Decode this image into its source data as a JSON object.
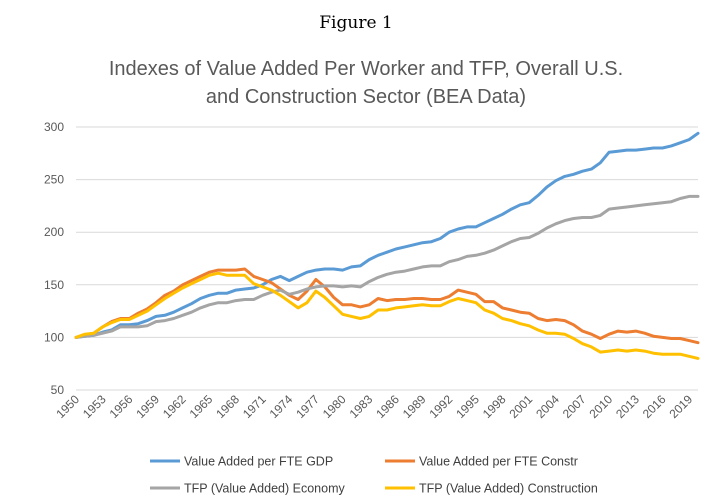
{
  "figure_label": "Figure 1",
  "chart_data": {
    "type": "line",
    "title": [
      "Indexes of Value Added Per Worker and TFP, Overall U.S.",
      "and Construction Sector (BEA Data)"
    ],
    "xlabel": "",
    "ylabel": "",
    "xlim": [
      1950,
      2020
    ],
    "ylim": [
      50,
      300
    ],
    "yticks": [
      50,
      100,
      150,
      200,
      250,
      300
    ],
    "xticks": [
      1950,
      1953,
      1956,
      1959,
      1962,
      1965,
      1968,
      1971,
      1974,
      1977,
      1980,
      1983,
      1986,
      1989,
      1992,
      1995,
      1998,
      2001,
      2004,
      2007,
      2010,
      2013,
      2016,
      2019
    ],
    "grid": true,
    "legend_position": "bottom",
    "x_start": 1950,
    "series": [
      {
        "name": "Value Added per FTE GDP",
        "color": "#5B9BD5",
        "values": [
          100,
          101,
          102,
          105,
          107,
          112,
          112,
          113,
          116,
          120,
          121,
          124,
          128,
          132,
          137,
          140,
          142,
          142,
          145,
          146,
          147,
          150,
          155,
          158,
          154,
          158,
          162,
          164,
          165,
          165,
          164,
          167,
          168,
          174,
          178,
          181,
          184,
          186,
          188,
          190,
          191,
          194,
          200,
          203,
          205,
          205,
          209,
          213,
          217,
          222,
          226,
          228,
          235,
          243,
          249,
          253,
          255,
          258,
          260,
          266,
          276,
          277,
          278,
          278,
          279,
          280,
          280,
          282,
          285,
          288,
          294
        ]
      },
      {
        "name": "Value Added per FTE Constr",
        "color": "#ED7D31",
        "values": [
          100,
          102,
          104,
          110,
          115,
          118,
          118,
          123,
          127,
          133,
          140,
          144,
          150,
          154,
          158,
          162,
          164,
          164,
          164,
          165,
          158,
          155,
          152,
          146,
          140,
          136,
          144,
          155,
          148,
          138,
          131,
          131,
          129,
          131,
          137,
          135,
          136,
          136,
          137,
          137,
          136,
          136,
          139,
          145,
          143,
          141,
          134,
          134,
          128,
          126,
          124,
          123,
          118,
          116,
          117,
          116,
          112,
          106,
          103,
          99,
          103,
          106,
          105,
          106,
          104,
          101,
          100,
          99,
          99,
          97,
          95
        ]
      },
      {
        "name": "TFP (Value Added) Economy",
        "color": "#A5A5A5",
        "values": [
          100,
          101,
          102,
          104,
          106,
          110,
          110,
          110,
          111,
          115,
          116,
          118,
          121,
          124,
          128,
          131,
          133,
          133,
          135,
          136,
          136,
          140,
          143,
          145,
          141,
          143,
          146,
          148,
          149,
          149,
          148,
          149,
          148,
          153,
          157,
          160,
          162,
          163,
          165,
          167,
          168,
          168,
          172,
          174,
          177,
          178,
          180,
          183,
          187,
          191,
          194,
          195,
          199,
          204,
          208,
          211,
          213,
          214,
          214,
          216,
          222,
          223,
          224,
          225,
          226,
          227,
          228,
          229,
          232,
          234,
          234
        ]
      },
      {
        "name": "TFP (Value Added) Construction",
        "color": "#FFC000",
        "values": [
          100,
          103,
          104,
          110,
          114,
          117,
          117,
          121,
          125,
          131,
          137,
          142,
          147,
          151,
          155,
          159,
          161,
          159,
          159,
          159,
          151,
          148,
          145,
          140,
          134,
          128,
          133,
          144,
          138,
          130,
          122,
          120,
          118,
          120,
          126,
          126,
          128,
          129,
          130,
          131,
          130,
          130,
          134,
          137,
          135,
          133,
          126,
          123,
          118,
          116,
          113,
          111,
          107,
          104,
          104,
          103,
          99,
          94,
          91,
          86,
          87,
          88,
          87,
          88,
          87,
          85,
          84,
          84,
          84,
          82,
          80
        ]
      }
    ]
  }
}
